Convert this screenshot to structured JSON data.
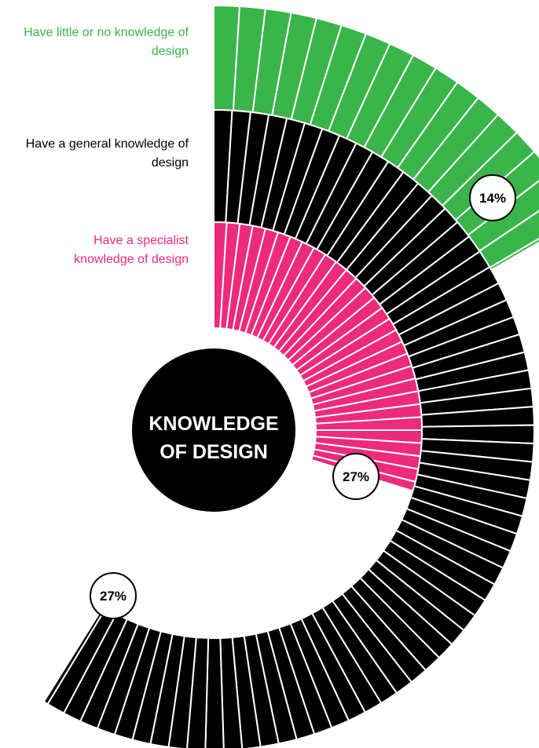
{
  "chart_data": {
    "type": "radial-bar",
    "title": "KNOWLEDGE OF DESIGN",
    "title_lines": [
      "KNOWLEDGE",
      "OF DESIGN"
    ],
    "series": [
      {
        "name": "Have little or no knowledge of design",
        "value": 14,
        "value_label": "14%",
        "color": "#3ab54a"
      },
      {
        "name": "Have a general knowledge of design",
        "value": 27,
        "value_label": "27%",
        "color": "#000000"
      },
      {
        "name": "Have a specialist knowledge of design",
        "value": 27,
        "value_label": "27%",
        "color": "#ee2a7b"
      }
    ]
  },
  "legend": {
    "green": "Have little or no knowledge of design",
    "black": "Have a general knowledge of design",
    "pink": "Have a specialist knowledge of design"
  }
}
